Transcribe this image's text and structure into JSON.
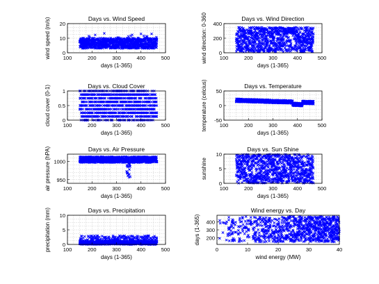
{
  "chart_data": [
    {
      "type": "scatter",
      "title": "Days vs. Wind Speed",
      "xlabel": "days (1-365)",
      "ylabel": "wind speed (m/s)",
      "xlim": [
        100,
        500
      ],
      "ylim": [
        0,
        20
      ],
      "xticks": [
        100,
        200,
        300,
        400,
        500
      ],
      "yticks": [
        0,
        10,
        20
      ],
      "grid": true,
      "series": [
        {
          "color": "#0000ff",
          "x_range": [
            150,
            465
          ],
          "y_range": [
            0,
            14
          ]
        }
      ]
    },
    {
      "type": "scatter",
      "title": "Days vs. Wind Direction",
      "xlabel": "days (1-365)",
      "ylabel": "wind direction: 0-360",
      "xlim": [
        100,
        500
      ],
      "ylim": [
        0,
        400
      ],
      "xticks": [
        100,
        200,
        300,
        400,
        500
      ],
      "yticks": [
        0,
        200,
        400
      ],
      "grid": true,
      "series": [
        {
          "color": "#0000ff",
          "x_range": [
            150,
            465
          ],
          "y_range": [
            0,
            360
          ]
        }
      ]
    },
    {
      "type": "scatter",
      "title": "Days vs. Cloud Cover",
      "xlabel": "days (1-365)",
      "ylabel": "cloud cover (0-1)",
      "xlim": [
        100,
        500
      ],
      "ylim": [
        0,
        1
      ],
      "xticks": [
        100,
        200,
        300,
        400,
        500
      ],
      "yticks": [
        0,
        0.5,
        1
      ],
      "grid": true,
      "series": [
        {
          "color": "#0000ff",
          "x_range": [
            150,
            465
          ],
          "y_levels": [
            0,
            0.125,
            0.25,
            0.375,
            0.5,
            0.625,
            0.75,
            0.875,
            1
          ]
        }
      ]
    },
    {
      "type": "scatter",
      "title": "Days vs. Temperature",
      "xlabel": "days (1-365)",
      "ylabel": "temperature (celcius)",
      "xlim": [
        100,
        500
      ],
      "ylim": [
        -50,
        50
      ],
      "xticks": [
        100,
        200,
        300,
        400,
        500
      ],
      "yticks": [
        -50,
        0,
        50
      ],
      "grid": true,
      "series": [
        {
          "color": "#0000ff",
          "x_range": [
            150,
            465
          ],
          "y_range": [
            -15,
            25
          ]
        }
      ]
    },
    {
      "type": "scatter",
      "title": "Days vs. Air Pressure",
      "xlabel": "days (1-365)",
      "ylabel": "air pressure (hPA)",
      "xlim": [
        100,
        500
      ],
      "ylim": [
        940,
        1020
      ],
      "xticks": [
        100,
        200,
        300,
        400,
        500
      ],
      "yticks": [
        950,
        1000
      ],
      "grid": true,
      "series": [
        {
          "color": "#0000ff",
          "x_range": [
            150,
            465
          ],
          "y_range": [
            945,
            1018
          ]
        }
      ]
    },
    {
      "type": "scatter",
      "title": "Days vs. Sun Shine",
      "xlabel": "days (1-365)",
      "ylabel": "sunshine",
      "xlim": [
        100,
        500
      ],
      "ylim": [
        0,
        10
      ],
      "xticks": [
        100,
        200,
        300,
        400,
        500
      ],
      "yticks": [
        0,
        5,
        10
      ],
      "grid": true,
      "series": [
        {
          "color": "#0000ff",
          "x_range": [
            150,
            465
          ],
          "y_range": [
            0,
            10
          ]
        }
      ]
    },
    {
      "type": "scatter",
      "title": "Days vs. Precipitation",
      "xlabel": "days (1-365)",
      "ylabel": "precipitation (mm)",
      "xlim": [
        100,
        500
      ],
      "ylim": [
        0,
        10
      ],
      "xticks": [
        100,
        200,
        300,
        400,
        500
      ],
      "yticks": [
        0,
        5,
        10
      ],
      "grid": true,
      "series": [
        {
          "color": "#0000ff",
          "x_range": [
            150,
            465
          ],
          "y_range": [
            0,
            6
          ]
        }
      ]
    },
    {
      "type": "scatter",
      "title": "Wind energy vs. Day",
      "xlabel": "wind energy (MW)",
      "ylabel": "days (1-365)",
      "xlim": [
        0,
        40
      ],
      "ylim": [
        120,
        480
      ],
      "xticks": [
        0,
        10,
        20,
        30,
        40
      ],
      "yticks": [
        200,
        300,
        400
      ],
      "grid": true,
      "series": [
        {
          "color": "#0000ff",
          "x_range": [
            0,
            40
          ],
          "y_range": [
            150,
            465
          ]
        }
      ]
    }
  ]
}
